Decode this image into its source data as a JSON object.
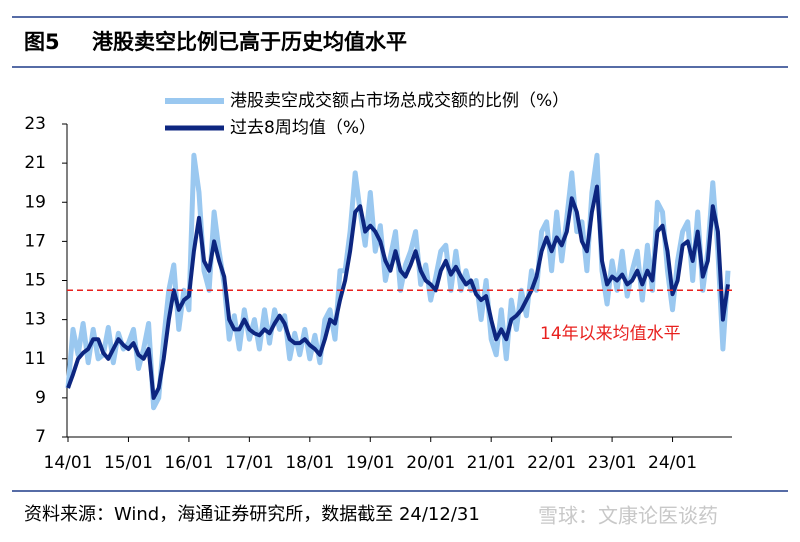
{
  "chart_data": {
    "type": "line",
    "figure_number": "图5",
    "title": "港股卖空比例已高于历史均值水平",
    "source": "资料来源：Wind，海通证券研究所，数据截至 24/12/31",
    "watermark": "雪球：文康论医谈药",
    "categories": [
      "14/01",
      null,
      null,
      null,
      null,
      null,
      null,
      null,
      null,
      null,
      null,
      null,
      "15/01",
      null,
      null,
      null,
      null,
      null,
      null,
      null,
      null,
      null,
      null,
      null,
      "16/01",
      null,
      null,
      null,
      null,
      null,
      null,
      null,
      null,
      null,
      null,
      null,
      "17/01",
      null,
      null,
      null,
      null,
      null,
      null,
      null,
      null,
      null,
      null,
      null,
      "18/01",
      null,
      null,
      null,
      null,
      null,
      null,
      null,
      null,
      null,
      null,
      null,
      "19/01",
      null,
      null,
      null,
      null,
      null,
      null,
      null,
      null,
      null,
      null,
      null,
      "20/01",
      null,
      null,
      null,
      null,
      null,
      null,
      null,
      null,
      null,
      null,
      null,
      "21/01",
      null,
      null,
      null,
      null,
      null,
      null,
      null,
      null,
      null,
      null,
      null,
      "22/01",
      null,
      null,
      null,
      null,
      null,
      null,
      null,
      null,
      null,
      null,
      null,
      "23/01",
      null,
      null,
      null,
      null,
      null,
      null,
      null,
      null,
      null,
      null,
      null,
      "24/01",
      null,
      null,
      null,
      null,
      null,
      null,
      null,
      null,
      null,
      null,
      null
    ],
    "series": [
      {
        "name": "港股卖空成交额占市场总成交额的比例（%）",
        "color": "#9ac8f0",
        "width": 5,
        "values": [
          9.5,
          12.5,
          11.2,
          12.8,
          10.8,
          12.5,
          11,
          11.2,
          12.6,
          10.8,
          12.3,
          11.5,
          11.8,
          12.5,
          10.5,
          11.5,
          12.8,
          8.5,
          9,
          12,
          14.5,
          15.8,
          12.5,
          14.5,
          13.5,
          21.4,
          19.5,
          15.5,
          14.5,
          18.5,
          16.5,
          14.8,
          12,
          13.2,
          11.5,
          13.5,
          12,
          13,
          11.5,
          13.5,
          11.8,
          13.5,
          12.5,
          13.2,
          11,
          12.3,
          11.2,
          12.5,
          11,
          12.2,
          10.8,
          13,
          13.5,
          12,
          15.5,
          15.5,
          17.5,
          20.5,
          18.5,
          16.8,
          19.5,
          16.5,
          17.8,
          15,
          16.2,
          17.5,
          14.5,
          15.8,
          16.5,
          17.5,
          14.8,
          15.8,
          14,
          15.2,
          16.5,
          16.8,
          14.5,
          16.5,
          14.5,
          15.5,
          14.5,
          15,
          13,
          15,
          12,
          11.2,
          13.5,
          11,
          14,
          12.5,
          14.5,
          13.2,
          15.5,
          14.5,
          17.5,
          18,
          15.5,
          18.5,
          16,
          18.2,
          20.5,
          17.5,
          18,
          15.5,
          19.5,
          21.4,
          15.5,
          13.8,
          16,
          14.5,
          16.5,
          14.2,
          15.5,
          16.5,
          14,
          16.8,
          14.5,
          19,
          18.5,
          15.5,
          13.5,
          16,
          17.5,
          18,
          15,
          18.5,
          14.5,
          16.5,
          20,
          16.5,
          11.5,
          15.5
        ]
      },
      {
        "name": "过去8周均值（%）",
        "color": "#0d2680",
        "width": 4,
        "values": [
          9.5,
          10.2,
          11,
          11.3,
          11.5,
          12,
          12,
          11.3,
          11,
          11.5,
          12,
          11.7,
          11.5,
          11.8,
          11.2,
          11,
          11.5,
          9,
          9.5,
          11,
          13,
          14.5,
          13.5,
          14,
          14.2,
          16.5,
          18.2,
          16,
          15.5,
          17,
          16,
          15.2,
          13,
          12.5,
          12.5,
          13,
          12.5,
          12.3,
          12.2,
          12.5,
          12.3,
          12.8,
          13.2,
          12.8,
          12,
          11.8,
          11.8,
          12,
          11.7,
          11.5,
          11.2,
          12,
          13,
          12.8,
          14,
          15,
          16.5,
          18.5,
          18.8,
          17.5,
          17.8,
          17.5,
          17,
          16,
          15.5,
          16.5,
          15.5,
          15.2,
          15.8,
          16.5,
          15.5,
          15,
          14.8,
          14.5,
          15.5,
          16,
          15.3,
          15.7,
          15.2,
          14.8,
          15,
          14.3,
          14,
          14.2,
          13,
          12,
          12.5,
          12,
          13,
          13.2,
          13.5,
          14,
          14.5,
          15.2,
          16.5,
          17.2,
          16.5,
          17.2,
          16.8,
          17.5,
          19.2,
          18.5,
          17,
          16.5,
          18.5,
          19.8,
          16,
          14.8,
          15.2,
          15,
          15.3,
          14.8,
          15,
          15.5,
          14.8,
          15.5,
          15,
          17.5,
          17.8,
          16.5,
          14.3,
          15,
          16.8,
          17,
          16,
          17.5,
          15.2,
          16,
          18.8,
          17.5,
          13,
          14.8
        ]
      }
    ],
    "reference_line": {
      "value": 14.5,
      "label": "14年以来均值水平",
      "color": "#e8201e"
    },
    "ylim": [
      7,
      23
    ],
    "yticks": [
      7,
      9,
      11,
      13,
      15,
      17,
      19,
      21,
      23
    ],
    "grid": false
  }
}
